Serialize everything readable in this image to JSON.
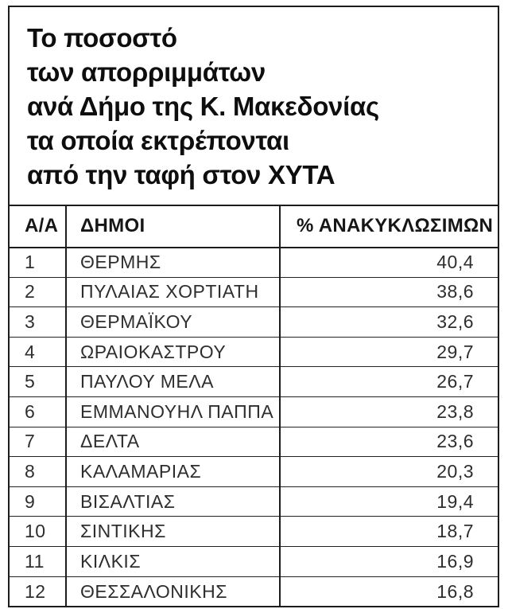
{
  "header": {
    "title_lines": [
      "Το ποσοστό",
      "των απορριμμάτων",
      "ανά Δήμο της Κ. Μακεδονίας",
      "τα οποία εκτρέπονται",
      "από την ταφή στον ΧΥΤΑ"
    ]
  },
  "table": {
    "headers": [
      "Α/Α",
      "ΔΗΜΟΙ",
      "% ΑΝΑΚΥΚΛΩΣΙΜΩΝ"
    ],
    "rows": [
      {
        "index": "1",
        "name": "ΘΕΡΜΗΣ",
        "value": "40,4"
      },
      {
        "index": "2",
        "name": "ΠΥΛΑΙΑΣ ΧΟΡΤΙΑΤΗ",
        "value": "38,6"
      },
      {
        "index": "3",
        "name": "ΘΕΡΜΑΪΚΟΥ",
        "value": "32,6"
      },
      {
        "index": "4",
        "name": "ΩΡΑΙΟΚΑΣΤΡΟΥ",
        "value": "29,7"
      },
      {
        "index": "5",
        "name": "ΠΑΥΛΟΥ ΜΕΛΑ",
        "value": "26,7"
      },
      {
        "index": "6",
        "name": "ΕΜΜΑΝΟΥΗΛ ΠΑΠΠΑ",
        "value": "23,8"
      },
      {
        "index": "7",
        "name": "ΔΕΛΤΑ",
        "value": "23,6"
      },
      {
        "index": "8",
        "name": "ΚΑΛΑΜΑΡΙΑΣ",
        "value": "20,3"
      },
      {
        "index": "9",
        "name": "ΒΙΣΑΛΤΙΑΣ",
        "value": "19,4"
      },
      {
        "index": "10",
        "name": "ΣΙΝΤΙΚΗΣ",
        "value": "18,7"
      },
      {
        "index": "11",
        "name": "ΚΙΛΚΙΣ",
        "value": "16,9"
      },
      {
        "index": "12",
        "name": "ΘΕΣΣΑΛΟΝΙΚΗΣ",
        "value": "16,8"
      }
    ]
  },
  "colors": {
    "border": "#1c1c1c",
    "title_text": "#0e0e0e",
    "body_text": "#2e2e2e"
  },
  "chart_data": {
    "type": "table",
    "title": "Το ποσοστό των απορριμμάτων ανά Δήμο της Κ. Μακεδονίας τα οποία εκτρέπονται από την ταφή στον ΧΥΤΑ",
    "columns": [
      "Α/Α",
      "ΔΗΜΟΙ",
      "% ΑΝΑΚΥΚΛΩΣΙΜΩΝ"
    ],
    "categories": [
      "ΘΕΡΜΗΣ",
      "ΠΥΛΑΙΑΣ ΧΟΡΤΙΑΤΗ",
      "ΘΕΡΜΑΪΚΟΥ",
      "ΩΡΑΙΟΚΑΣΤΡΟΥ",
      "ΠΑΥΛΟΥ ΜΕΛΑ",
      "ΕΜΜΑΝΟΥΗΛ ΠΑΠΠΑ",
      "ΔΕΛΤΑ",
      "ΚΑΛΑΜΑΡΙΑΣ",
      "ΒΙΣΑΛΤΙΑΣ",
      "ΣΙΝΤΙΚΗΣ",
      "ΚΙΛΚΙΣ",
      "ΘΕΣΣΑΛΟΝΙΚΗΣ"
    ],
    "values": [
      40.4,
      38.6,
      32.6,
      29.7,
      26.7,
      23.8,
      23.6,
      20.3,
      19.4,
      18.7,
      16.9,
      16.8
    ],
    "value_unit": "percent",
    "decimal_separator": ","
  }
}
